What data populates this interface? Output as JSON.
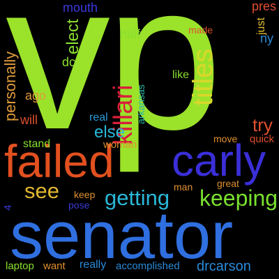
{
  "background": "#000000",
  "words": [
    {
      "text": "vp",
      "color": "#9be22b"
    },
    {
      "text": "senator",
      "color": "#2f6fe0"
    },
    {
      "text": "failed",
      "color": "#e2501f"
    },
    {
      "text": "carly",
      "color": "#3a2fd8"
    },
    {
      "text": "killari",
      "color": "#d81e3a"
    },
    {
      "text": "titles",
      "color": "#d8d82a"
    },
    {
      "text": "getting",
      "color": "#2ab8d8"
    },
    {
      "text": "keeping",
      "color": "#7ae02f"
    },
    {
      "text": "see",
      "color": "#e0b830"
    },
    {
      "text": "personally",
      "color": "#e09a3a"
    },
    {
      "text": "elect",
      "color": "#8ae02f"
    },
    {
      "text": "mouth",
      "color": "#3a3ae0"
    },
    {
      "text": "half",
      "color": "#8ae02f"
    },
    {
      "text": "made",
      "color": "#e0502f"
    },
    {
      "text": "pres",
      "color": "#e0502f"
    },
    {
      "text": "just",
      "color": "#e0c030"
    },
    {
      "text": "ny",
      "color": "#2a8ad8"
    },
    {
      "text": "dc",
      "color": "#8ae02f"
    },
    {
      "text": "like",
      "color": "#8ae02f"
    },
    {
      "text": "ago",
      "color": "#e09a3a"
    },
    {
      "text": "will",
      "color": "#e0502f"
    },
    {
      "text": "real",
      "color": "#2a9ad8"
    },
    {
      "text": "arkansas",
      "color": "#2ab8a8"
    },
    {
      "text": "else",
      "color": "#2ab8d8"
    },
    {
      "text": "try",
      "color": "#e0502f"
    },
    {
      "text": "quick",
      "color": "#e0502f"
    },
    {
      "text": "move",
      "color": "#e0902f"
    },
    {
      "text": "stand",
      "color": "#8ae02f"
    },
    {
      "text": "woman",
      "color": "#e0902f"
    },
    {
      "text": "man",
      "color": "#e0902f"
    },
    {
      "text": "great",
      "color": "#e0902f"
    },
    {
      "text": "keep",
      "color": "#e0902f"
    },
    {
      "text": "pose",
      "color": "#3a3ad8"
    },
    {
      "text": "4",
      "color": "#3a3ad8"
    },
    {
      "text": "laptop",
      "color": "#8ae02f"
    },
    {
      "text": "want",
      "color": "#e0902f"
    },
    {
      "text": "really",
      "color": "#2a8ad8"
    },
    {
      "text": "accomplished",
      "color": "#2a8ad8"
    },
    {
      "text": "drcarson",
      "color": "#2a8ad8"
    }
  ]
}
